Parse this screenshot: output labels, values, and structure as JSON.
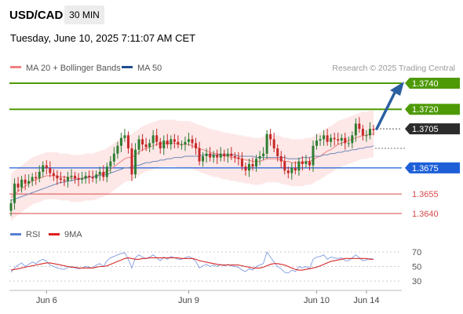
{
  "header": {
    "pair": "USD/CAD",
    "timeframe": "30 MIN",
    "datetime": "Tuesday, June 10, 2025 7:11:07 AM CET"
  },
  "legend": {
    "items": [
      {
        "label": "MA 20 + Bollinger Bands",
        "color": "#f08080"
      },
      {
        "label": "MA 50",
        "color": "#1f4e8c"
      }
    ],
    "credit": "Research © 2025 Trading Central"
  },
  "rsi_legend": {
    "items": [
      {
        "label": "RSI",
        "color": "#5b7fd6"
      },
      {
        "label": "9MA",
        "color": "#e02020"
      }
    ]
  },
  "colors": {
    "resistance": "#4e9a06",
    "pivot": "#1e5fd8",
    "support": "#d94a4a",
    "current": "#2b2b2b",
    "candle_up": "#2e7d32",
    "candle_down": "#c62828",
    "band_fill": "#fde3e3",
    "arrow": "#2b5fa0"
  },
  "chart_data": {
    "type": "candlestick",
    "ylim": [
      1.3625,
      1.3755
    ],
    "x_tick_labels": [
      {
        "label": "Jun 6",
        "index": 10
      },
      {
        "label": "Jun 9",
        "index": 50
      },
      {
        "label": "Jun 10",
        "index": 86
      },
      {
        "label": "Jun 14",
        "index": 100
      }
    ],
    "levels": [
      {
        "value": 1.374,
        "label": "1.3740",
        "kind": "resistance",
        "style": "badge"
      },
      {
        "value": 1.372,
        "label": "1.3720",
        "kind": "resistance",
        "style": "badge"
      },
      {
        "value": 1.3705,
        "label": "1.3705",
        "kind": "current",
        "style": "badge"
      },
      {
        "value": 1.3675,
        "label": "1.3675",
        "kind": "pivot",
        "style": "badge"
      },
      {
        "value": 1.3655,
        "label": "1.3655",
        "kind": "support",
        "style": "text"
      },
      {
        "value": 1.364,
        "label": "1.3640",
        "kind": "support",
        "style": "text"
      }
    ],
    "candles_close": [
      1.3648,
      1.3663,
      1.366,
      1.3666,
      1.3663,
      1.3665,
      1.3668,
      1.3667,
      1.3672,
      1.3677,
      1.3675,
      1.3671,
      1.3669,
      1.3667,
      1.3666,
      1.3665,
      1.3668,
      1.3669,
      1.3667,
      1.3666,
      1.3667,
      1.3669,
      1.3668,
      1.3667,
      1.367,
      1.3672,
      1.3668,
      1.3676,
      1.368,
      1.3686,
      1.3692,
      1.3698,
      1.37,
      1.369,
      1.367,
      1.3689,
      1.3697,
      1.3693,
      1.3691,
      1.3694,
      1.37,
      1.3695,
      1.369,
      1.3696,
      1.3693,
      1.3697,
      1.3695,
      1.3693,
      1.3693,
      1.3695,
      1.3697,
      1.3694,
      1.369,
      1.368,
      1.3684,
      1.3686,
      1.3683,
      1.3685,
      1.3683,
      1.3686,
      1.3684,
      1.3686,
      1.3684,
      1.3683,
      1.3682,
      1.3676,
      1.3673,
      1.3678,
      1.3676,
      1.3682,
      1.3684,
      1.3686,
      1.3701,
      1.3697,
      1.369,
      1.3684,
      1.368,
      1.3673,
      1.3671,
      1.3675,
      1.3673,
      1.368,
      1.3678,
      1.368,
      1.3677,
      1.3692,
      1.3696,
      1.3697,
      1.37,
      1.3695,
      1.3698,
      1.3697,
      1.3696,
      1.3698,
      1.3694,
      1.3694,
      1.37,
      1.3709,
      1.3705,
      1.37,
      1.37,
      1.3705,
      1.3704
    ],
    "ma20": [
      1.3652,
      1.3655,
      1.3657,
      1.3659,
      1.3661,
      1.3663,
      1.3665,
      1.3666,
      1.3667,
      1.3668,
      1.3669,
      1.3669,
      1.3669,
      1.3669,
      1.3668,
      1.3668,
      1.3668,
      1.3667,
      1.3667,
      1.3667,
      1.3667,
      1.3668,
      1.3668,
      1.3668,
      1.3669,
      1.367,
      1.3671,
      1.3672,
      1.3674,
      1.3676,
      1.3678,
      1.368,
      1.3682,
      1.3683,
      1.3683,
      1.3685,
      1.3687,
      1.3689,
      1.369,
      1.3691,
      1.3692,
      1.3693,
      1.3694,
      1.3694,
      1.3694,
      1.3694,
      1.3694,
      1.3693,
      1.3693,
      1.3693,
      1.3693,
      1.3692,
      1.3691,
      1.369,
      1.3689,
      1.3688,
      1.3687,
      1.3686,
      1.3686,
      1.3685,
      1.3684,
      1.3684,
      1.3683,
      1.3683,
      1.3682,
      1.3682,
      1.3681,
      1.3681,
      1.368,
      1.368,
      1.368,
      1.3681,
      1.3682,
      1.3682,
      1.3682,
      1.3682,
      1.3681,
      1.368,
      1.368,
      1.3679,
      1.3679,
      1.3679,
      1.3679,
      1.368,
      1.368,
      1.3681,
      1.3683,
      1.3684,
      1.3686,
      1.3688,
      1.3689,
      1.3691,
      1.3693,
      1.3694,
      1.3695,
      1.3696,
      1.3697,
      1.3698,
      1.3699,
      1.37,
      1.37,
      1.3701,
      1.3701
    ],
    "ma50": [
      1.365,
      1.3651,
      1.3652,
      1.3653,
      1.3654,
      1.3655,
      1.3656,
      1.3657,
      1.3658,
      1.3659,
      1.366,
      1.3661,
      1.3662,
      1.3663,
      1.3664,
      1.3664,
      1.3665,
      1.3665,
      1.3666,
      1.3666,
      1.3667,
      1.3667,
      1.3668,
      1.3668,
      1.3669,
      1.3669,
      1.367,
      1.367,
      1.3671,
      1.3672,
      1.3673,
      1.3674,
      1.3675,
      1.3675,
      1.3676,
      1.3677,
      1.3677,
      1.3678,
      1.3679,
      1.3679,
      1.368,
      1.368,
      1.3681,
      1.3681,
      1.3682,
      1.3682,
      1.3683,
      1.3683,
      1.3683,
      1.3684,
      1.3684,
      1.3684,
      1.3684,
      1.3684,
      1.3685,
      1.3685,
      1.3685,
      1.3685,
      1.3685,
      1.3685,
      1.3685,
      1.3685,
      1.3685,
      1.3685,
      1.3684,
      1.3684,
      1.3684,
      1.3684,
      1.3684,
      1.3683,
      1.3683,
      1.3683,
      1.3683,
      1.3683,
      1.3683,
      1.3683,
      1.3683,
      1.3683,
      1.3682,
      1.3682,
      1.3682,
      1.3682,
      1.3683,
      1.3683,
      1.3683,
      1.3684,
      1.3684,
      1.3684,
      1.3685,
      1.3685,
      1.3686,
      1.3686,
      1.3687,
      1.3687,
      1.3688,
      1.3688,
      1.3689,
      1.3689,
      1.369,
      1.369,
      1.3691,
      1.3691,
      1.3692
    ],
    "rsi": {
      "ylim": [
        20,
        80
      ],
      "ticks": [
        70,
        50,
        30
      ],
      "rsi_values": [
        42,
        48,
        52,
        55,
        50,
        53,
        56,
        54,
        58,
        60,
        57,
        52,
        50,
        48,
        47,
        46,
        49,
        50,
        48,
        47,
        48,
        50,
        49,
        48,
        52,
        54,
        50,
        58,
        62,
        64,
        66,
        68,
        69,
        60,
        48,
        62,
        66,
        63,
        61,
        63,
        66,
        62,
        58,
        63,
        60,
        64,
        62,
        60,
        60,
        62,
        64,
        61,
        57,
        48,
        51,
        53,
        50,
        52,
        50,
        53,
        51,
        53,
        51,
        50,
        49,
        45,
        43,
        47,
        45,
        50,
        52,
        54,
        70,
        63,
        56,
        50,
        47,
        42,
        41,
        45,
        43,
        50,
        48,
        50,
        47,
        60,
        63,
        64,
        66,
        60,
        63,
        62,
        61,
        62,
        58,
        58,
        62,
        66,
        62,
        58,
        59,
        61,
        60
      ],
      "ma9_values": [
        45,
        46,
        47,
        48,
        49,
        50,
        51,
        52,
        53,
        54,
        55,
        55,
        54,
        53,
        52,
        51,
        50,
        49,
        49,
        48,
        48,
        48,
        48,
        48,
        49,
        50,
        50,
        51,
        53,
        55,
        57,
        59,
        61,
        62,
        61,
        60,
        60,
        61,
        61,
        62,
        62,
        62,
        62,
        62,
        62,
        62,
        62,
        62,
        61,
        61,
        61,
        61,
        60,
        58,
        57,
        56,
        55,
        54,
        53,
        52,
        52,
        52,
        52,
        52,
        52,
        51,
        50,
        49,
        48,
        48,
        48,
        49,
        51,
        53,
        54,
        54,
        53,
        52,
        50,
        48,
        46,
        45,
        45,
        46,
        47,
        48,
        49,
        51,
        53,
        55,
        57,
        58,
        59,
        60,
        61,
        61,
        61,
        61,
        61,
        61,
        61,
        60,
        60
      ]
    }
  }
}
